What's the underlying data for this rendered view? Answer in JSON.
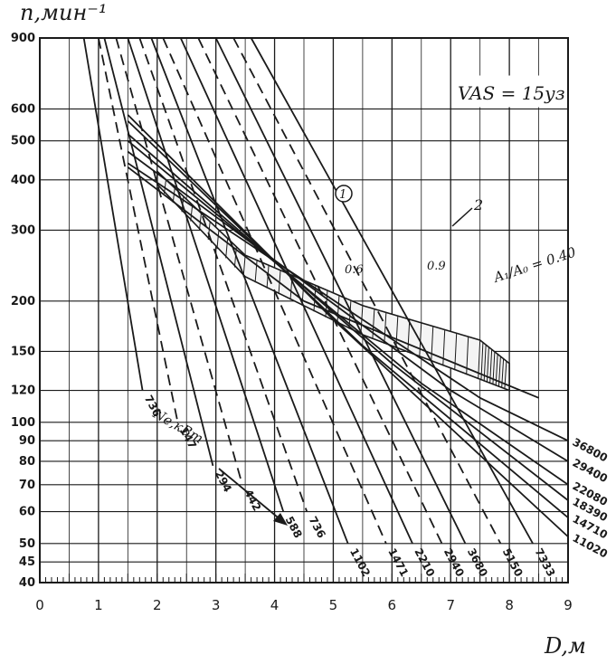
{
  "chart_data": {
    "type": "line",
    "title": "",
    "xlabel": "D,м",
    "ylabel": "n,мин⁻¹",
    "x_ticks": [
      "0",
      "1",
      "2",
      "3",
      "4",
      "5",
      "6",
      "7",
      "8",
      "9"
    ],
    "y_ticks": [
      {
        "value": 900,
        "label": "900"
      },
      {
        "value": 600,
        "label": "600"
      },
      {
        "value": 500,
        "label": "500"
      },
      {
        "value": 400,
        "label": "400"
      },
      {
        "value": 300,
        "label": "300"
      },
      {
        "value": 200,
        "label": "200"
      },
      {
        "value": 150,
        "label": "150"
      },
      {
        "value": 120,
        "label": "120"
      },
      {
        "value": 100,
        "label": "100"
      },
      {
        "value": 90,
        "label": "90"
      },
      {
        "value": 80,
        "label": "80"
      },
      {
        "value": 70,
        "label": "70"
      },
      {
        "value": 60,
        "label": "60"
      },
      {
        "value": 50,
        "label": "50"
      },
      {
        "value": 45,
        "label": "45"
      },
      {
        "value": 40,
        "label": "40"
      }
    ],
    "xlim": [
      0,
      9
    ],
    "ylim": [
      40,
      900
    ],
    "y_scale": "log",
    "grid": true,
    "annotations": {
      "speed": "VAS = 15уз",
      "ratio": "A₁/A₀ = 0.40",
      "power_label": "Nе,кВт",
      "band_label": "2",
      "marker_1": "1",
      "coef_a": "0.6",
      "coef_b": "0.9"
    },
    "series": [
      {
        "name": "736",
        "style": "solid",
        "points": [
          [
            0.75,
            900
          ],
          [
            1.75,
            120
          ]
        ]
      },
      {
        "name": "147",
        "style": "dashed",
        "points": [
          [
            1.0,
            900
          ],
          [
            2.35,
            100
          ]
        ]
      },
      {
        "name": "294",
        "style": "solid",
        "points": [
          [
            1.1,
            900
          ],
          [
            2.95,
            78
          ]
        ]
      },
      {
        "name": "442",
        "style": "dashed",
        "points": [
          [
            1.3,
            900
          ],
          [
            3.45,
            70
          ]
        ]
      },
      {
        "name": "588",
        "style": "solid",
        "points": [
          [
            1.5,
            900
          ],
          [
            4.15,
            60
          ]
        ]
      },
      {
        "name": "736",
        "style": "dashed",
        "points": [
          [
            1.7,
            900
          ],
          [
            4.55,
            60
          ]
        ]
      },
      {
        "name": "1102",
        "style": "solid",
        "points": [
          [
            1.9,
            900
          ],
          [
            5.25,
            50
          ]
        ]
      },
      {
        "name": "1471",
        "style": "dashed",
        "points": [
          [
            2.1,
            900
          ],
          [
            5.9,
            50
          ]
        ]
      },
      {
        "name": "2210",
        "style": "solid",
        "points": [
          [
            2.4,
            900
          ],
          [
            6.35,
            50
          ]
        ]
      },
      {
        "name": "2940",
        "style": "dashed",
        "points": [
          [
            2.7,
            900
          ],
          [
            6.85,
            50
          ]
        ]
      },
      {
        "name": "3680",
        "style": "solid",
        "points": [
          [
            3.0,
            900
          ],
          [
            7.25,
            50
          ]
        ]
      },
      {
        "name": "5150",
        "style": "dashed",
        "points": [
          [
            3.3,
            900
          ],
          [
            7.85,
            50
          ]
        ]
      },
      {
        "name": "7333",
        "style": "solid",
        "points": [
          [
            3.6,
            900
          ],
          [
            8.4,
            50
          ]
        ]
      },
      {
        "name": "11020",
        "style": "solid",
        "points": [
          [
            1.5,
            580
          ],
          [
            5.0,
            180
          ],
          [
            9.0,
            52
          ]
        ]
      },
      {
        "name": "14710",
        "style": "solid",
        "points": [
          [
            1.5,
            560
          ],
          [
            5.5,
            155
          ],
          [
            9.0,
            58
          ]
        ]
      },
      {
        "name": "18390",
        "style": "solid",
        "points": [
          [
            1.5,
            520
          ],
          [
            6.0,
            140
          ],
          [
            9.0,
            64
          ]
        ]
      },
      {
        "name": "22080",
        "style": "solid",
        "points": [
          [
            1.5,
            500
          ],
          [
            6.5,
            125
          ],
          [
            9.0,
            70
          ]
        ]
      },
      {
        "name": "29400",
        "style": "solid",
        "points": [
          [
            1.5,
            470
          ],
          [
            7.0,
            120
          ],
          [
            9.0,
            80
          ]
        ]
      },
      {
        "name": "36800",
        "style": "solid",
        "points": [
          [
            1.5,
            440
          ],
          [
            7.5,
            115
          ],
          [
            9.0,
            90
          ]
        ]
      }
    ],
    "reference_lines": [
      {
        "name": "1",
        "style": "solid",
        "points": [
          [
            1.5,
            430
          ],
          [
            4.5,
            200
          ],
          [
            8.5,
            115
          ]
        ]
      },
      {
        "name": "2",
        "style": "hatched-band",
        "upper": [
          [
            2.0,
            420
          ],
          [
            3.5,
            260
          ],
          [
            5.5,
            195
          ],
          [
            7.5,
            160
          ],
          [
            8.0,
            140
          ]
        ],
        "lower": [
          [
            2.0,
            390
          ],
          [
            3.5,
            230
          ],
          [
            5.5,
            165
          ],
          [
            7.5,
            128
          ],
          [
            8.0,
            120
          ]
        ]
      }
    ]
  }
}
